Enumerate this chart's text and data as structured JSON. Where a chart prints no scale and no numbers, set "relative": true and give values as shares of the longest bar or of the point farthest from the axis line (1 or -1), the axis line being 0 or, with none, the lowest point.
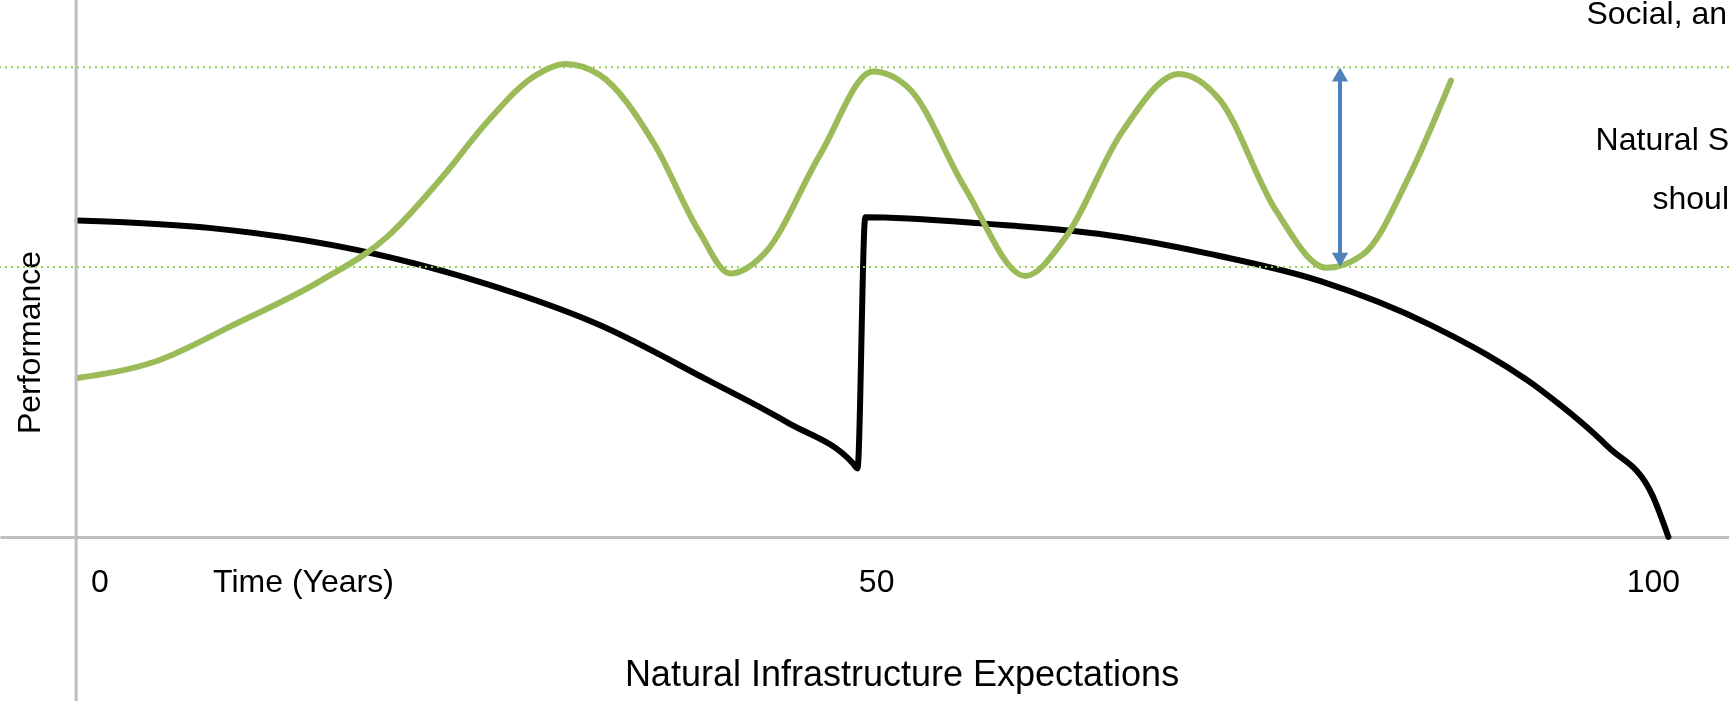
{
  "chart_data": {
    "type": "line",
    "relative": true,
    "xlabel": "Time (Years)",
    "ylabel": "Performance",
    "xlim": [
      -6.4,
      104.9
    ],
    "xticks": [
      0,
      50,
      100
    ],
    "grid": false,
    "series": [
      {
        "color": "#000000",
        "x": [
          -1.4,
          7.2,
          16.4,
          25.0,
          32.2,
          39.2,
          44.3,
          48.5,
          48.8,
          49.3,
          57.2,
          64.3,
          71.4,
          78.6,
          85.7,
          92.9,
          97.1,
          100.0,
          101.0
        ],
        "values": [
          0.669,
          0.653,
          0.608,
          0.534,
          0.448,
          0.331,
          0.242,
          0.156,
          0.145,
          0.676,
          0.662,
          0.641,
          0.599,
          0.541,
          0.448,
          0.308,
          0.191,
          0.086,
          0
        ]
      },
      {
        "color": "#9bbb59",
        "x": [
          -1.4,
          3.6,
          8.6,
          14.2,
          18.5,
          22.1,
          25.0,
          27.9,
          30.0,
          32.2,
          35.7,
          38.6,
          40.6,
          42.8,
          46.4,
          49.8,
          52.1,
          55.7,
          59.6,
          62.2,
          65.8,
          69.5,
          72.1,
          75.7,
          79.0,
          81.4,
          84.3,
          87.0
        ],
        "values": [
          0.336,
          0.371,
          0.448,
          0.541,
          0.634,
          0.762,
          0.879,
          0.972,
          1,
          0.977,
          0.832,
          0.646,
          0.557,
          0.599,
          0.809,
          0.984,
          0.949,
          0.739,
          0.552,
          0.634,
          0.855,
          0.979,
          0.925,
          0.692,
          0.569,
          0.599,
          0.762,
          0.965
        ]
      }
    ],
    "ref_lines": [
      {
        "axis": "x",
        "value": -1.5,
        "color": "#bfbfbf",
        "line_style": "solid"
      },
      {
        "axis": "y",
        "value": 0.993,
        "color": "#92d050",
        "line_style": "dotted"
      },
      {
        "axis": "y",
        "value": 0.571,
        "color": "#92d050",
        "line_style": "dotted"
      }
    ],
    "annotations": [
      "Social, an",
      "Natural S",
      "shoul",
      "Natural Infrastructure Expectations"
    ]
  }
}
